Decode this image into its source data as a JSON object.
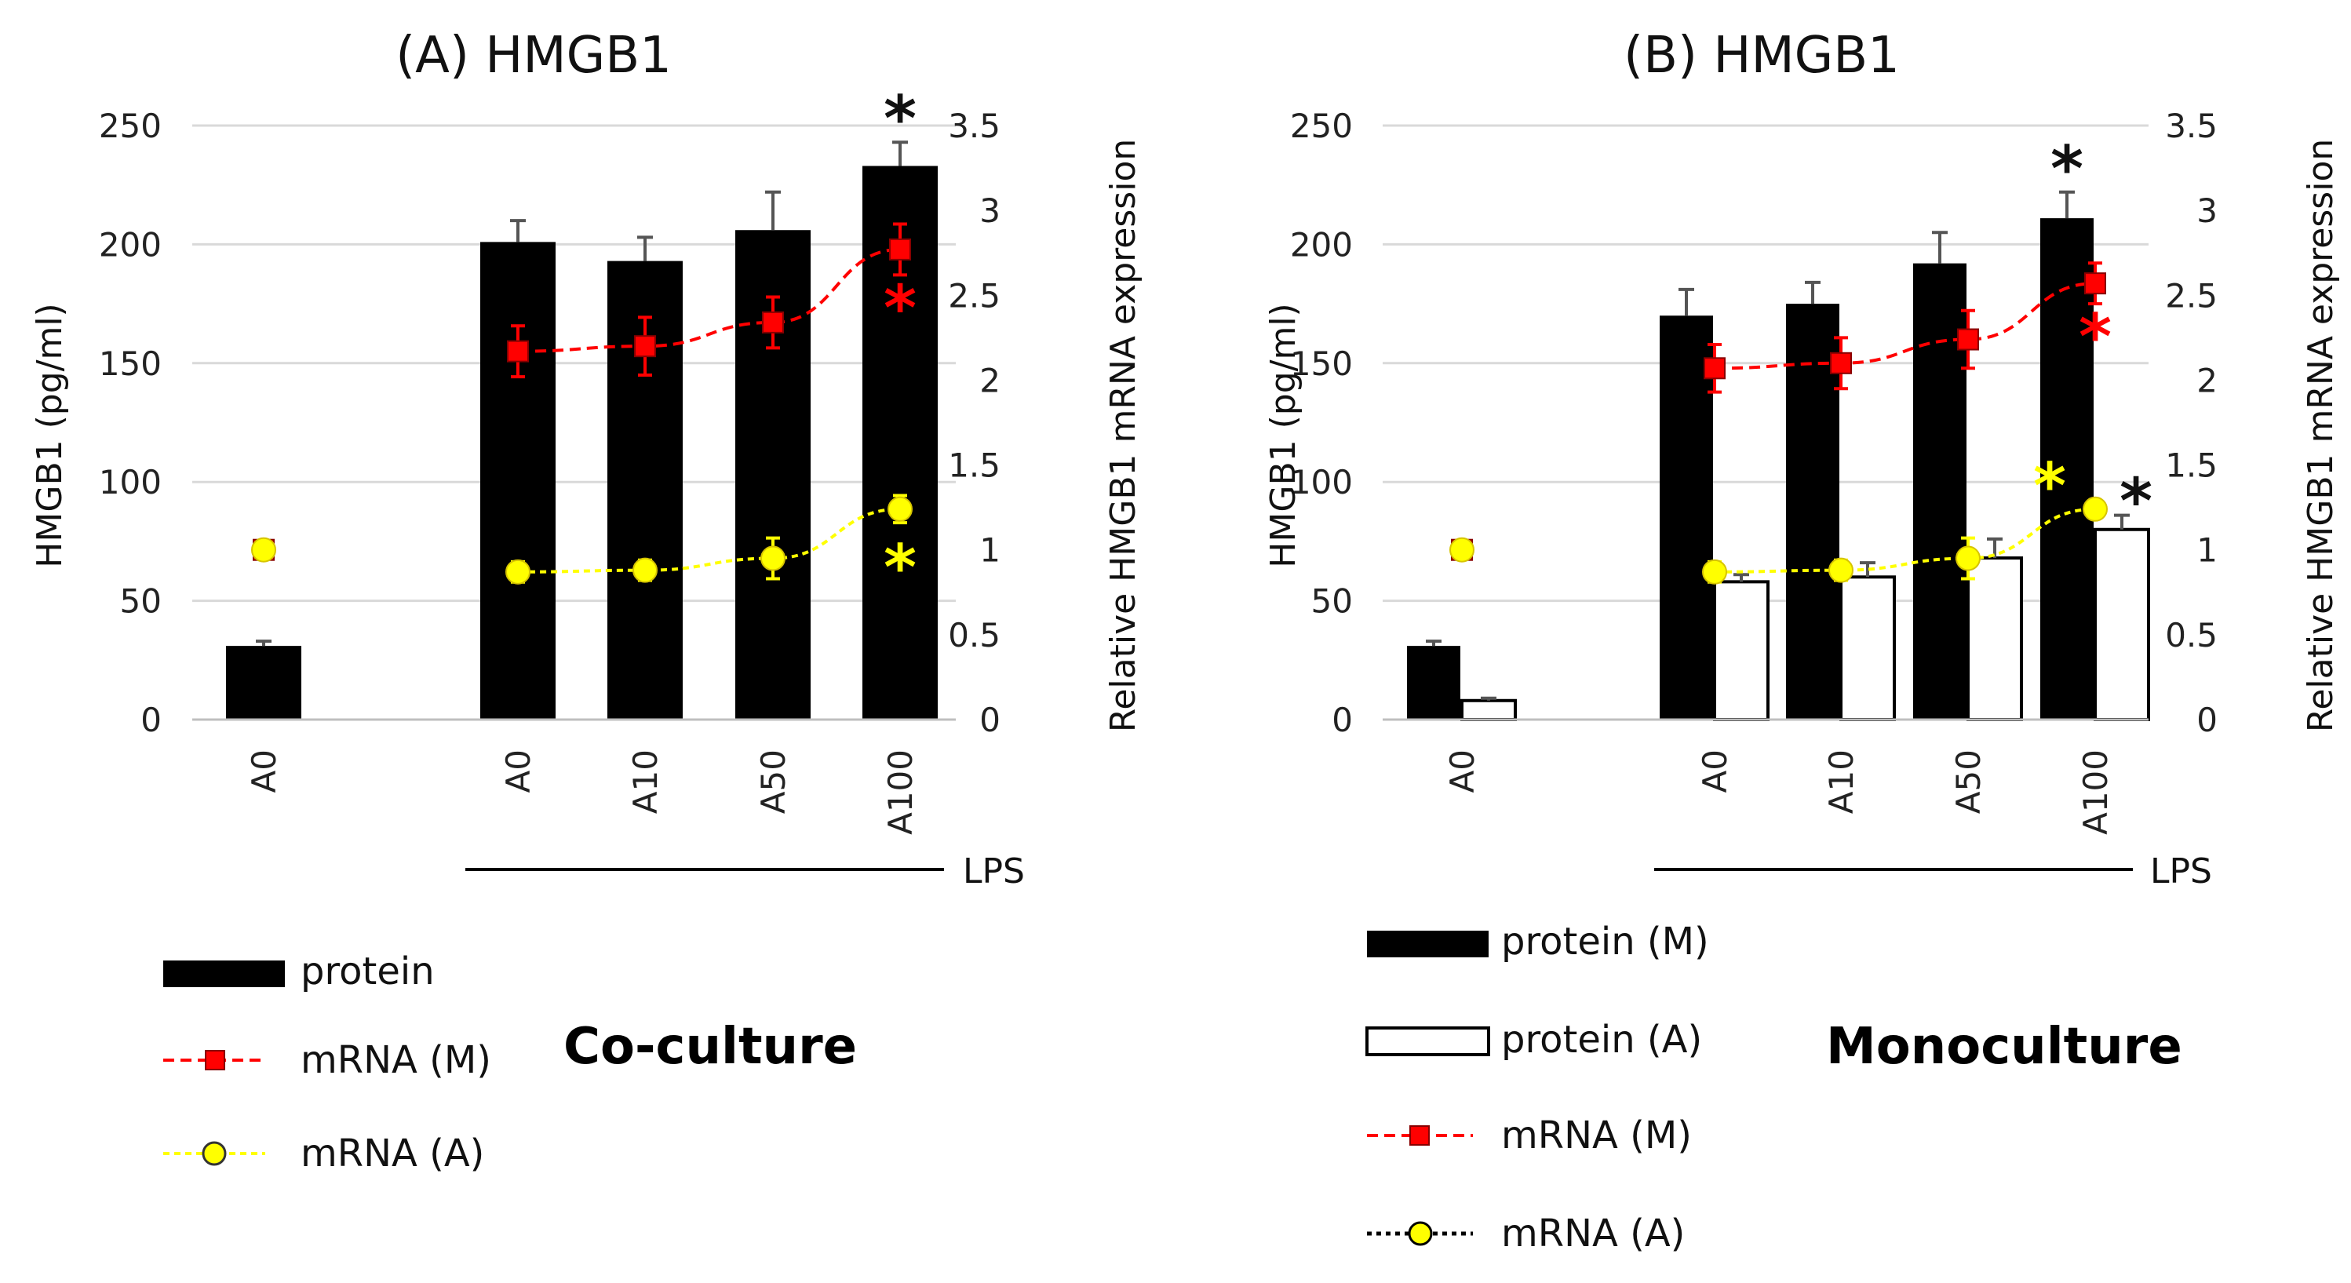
{
  "colors": {
    "protein": "#000000",
    "mrna_m": "#ff0000",
    "mrna_a": "#ffff00",
    "grid": "#d9d9d9",
    "errorbar": "#555555"
  },
  "chart_data": [
    {
      "type": "bar",
      "title": "(A) HMGB1",
      "ylabel": "HMGB1 (pg/ml)",
      "y2label": "Relative HMGB1  mRNA expression",
      "ylim": [
        0,
        250
      ],
      "yticks": [
        "0",
        "50",
        "100",
        "150",
        "200",
        "250"
      ],
      "y2lim": [
        0,
        3.5
      ],
      "y2ticks": [
        "0",
        "0.5",
        "1",
        "1.5",
        "2",
        "2.5",
        "3",
        "3.5"
      ],
      "categories": [
        "A0",
        "A0",
        "A10",
        "A50",
        "A100"
      ],
      "group_label": "LPS",
      "grid": true,
      "bars": [
        {
          "name": "protein",
          "values": [
            31,
            201,
            193,
            206,
            233
          ],
          "errors": [
            2,
            9,
            10,
            16,
            10
          ]
        }
      ],
      "lines": [
        {
          "name": "mRNA (M)",
          "values": [
            1.0,
            2.17,
            2.2,
            2.34,
            2.77
          ],
          "errors": [
            0.04,
            0.15,
            0.17,
            0.15,
            0.15
          ]
        },
        {
          "name": "mRNA (A)",
          "values": [
            1.0,
            0.87,
            0.88,
            0.95,
            1.24
          ],
          "errors": [
            0.04,
            0.06,
            0.06,
            0.12,
            0.08
          ]
        }
      ],
      "significance": [
        {
          "category": 4,
          "series": "protein",
          "label": "*"
        },
        {
          "category": 4,
          "series": "mRNA (M)",
          "label": "*"
        },
        {
          "category": 4,
          "series": "mRNA (A)",
          "label": "*"
        }
      ],
      "legend": [
        "protein",
        "mRNA (M)",
        "mRNA (A)"
      ],
      "subtitle": "Co-culture"
    },
    {
      "type": "bar",
      "title": "(B) HMGB1",
      "ylabel": "HMGB1 (pg/ml)",
      "y2label": "Relative HMGB1  mRNA expression",
      "ylim": [
        0,
        250
      ],
      "yticks": [
        "0",
        "50",
        "100",
        "150",
        "200",
        "250"
      ],
      "y2lim": [
        0,
        3.5
      ],
      "y2ticks": [
        "0",
        "0.5",
        "1",
        "1.5",
        "2",
        "2.5",
        "3",
        "3.5"
      ],
      "categories": [
        "A0",
        "A0",
        "A10",
        "A50",
        "A100"
      ],
      "group_label": "LPS",
      "grid": true,
      "bars": [
        {
          "name": "protein (M)",
          "values": [
            31,
            170,
            175,
            192,
            211
          ],
          "errors": [
            2,
            11,
            9,
            13,
            11
          ]
        },
        {
          "name": "protein (A)",
          "values": [
            8,
            58,
            60,
            68,
            80
          ],
          "errors": [
            1,
            3,
            6,
            8,
            6
          ]
        }
      ],
      "lines": [
        {
          "name": "mRNA (M)",
          "values": [
            1.0,
            2.07,
            2.1,
            2.24,
            2.57
          ],
          "errors": [
            0.04,
            0.14,
            0.15,
            0.17,
            0.12
          ]
        },
        {
          "name": "mRNA (A)",
          "values": [
            1.0,
            0.87,
            0.88,
            0.95,
            1.24
          ],
          "errors": [
            0.04,
            0.06,
            0.06,
            0.12,
            0.05
          ]
        }
      ],
      "significance": [
        {
          "category": 4,
          "series": "protein (M)",
          "label": "*"
        },
        {
          "category": 4,
          "series": "protein (A)",
          "label": "*"
        },
        {
          "category": 4,
          "series": "mRNA (M)",
          "label": "*"
        },
        {
          "category": 4,
          "series": "mRNA (A)",
          "label": "*"
        }
      ],
      "legend": [
        "protein (M)",
        "protein (A)",
        "mRNA (M)",
        "mRNA (A)"
      ],
      "subtitle": "Monoculture"
    }
  ]
}
